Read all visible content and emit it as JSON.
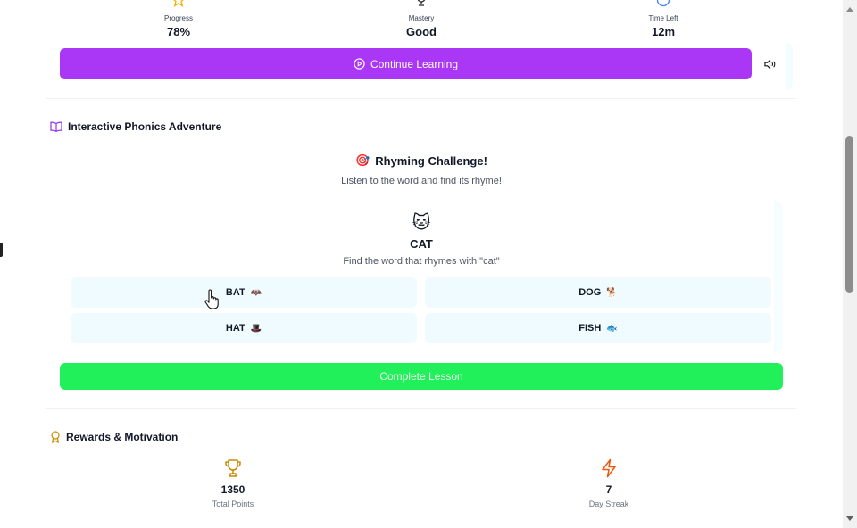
{
  "stats": {
    "progress": {
      "label": "Progress",
      "value": "78%",
      "icon": "star-icon"
    },
    "mastery": {
      "label": "Mastery",
      "value": "Good",
      "icon": "trophy-icon"
    },
    "time_left": {
      "label": "Time Left",
      "value": "12m",
      "icon": "clock-icon"
    }
  },
  "continue_button": {
    "label": "Continue Learning",
    "icon": "play-circle-icon"
  },
  "sound_button": {
    "icon": "speaker-icon"
  },
  "phonics": {
    "heading": "Interactive Phonics Adventure",
    "heading_icon": "book-open-icon",
    "challenge_title": "Rhyming Challenge!",
    "challenge_emoji": "🎯",
    "challenge_subtitle": "Listen to the word and find its rhyme!",
    "word_emoji": "🐱",
    "word": "CAT",
    "hint": "Find the word that rhymes with \"cat\"",
    "options": [
      {
        "label": "BAT",
        "emoji": "🦇"
      },
      {
        "label": "DOG",
        "emoji": "🐕"
      },
      {
        "label": "HAT",
        "emoji": "🎩"
      },
      {
        "label": "FISH",
        "emoji": "🐟"
      }
    ],
    "complete_label": "Complete Lesson"
  },
  "rewards": {
    "heading": "Rewards & Motivation",
    "heading_icon": "award-icon",
    "points": {
      "value": "1350",
      "label": "Total Points",
      "icon": "trophy-icon",
      "color": "#ca8a04"
    },
    "streak": {
      "value": "7",
      "label": "Day Streak",
      "icon": "lightning-icon",
      "color": "#ea580c"
    }
  },
  "colors": {
    "primary_purple": "#a937f5",
    "success_green": "#22f05a",
    "option_bg": "#effbff"
  }
}
